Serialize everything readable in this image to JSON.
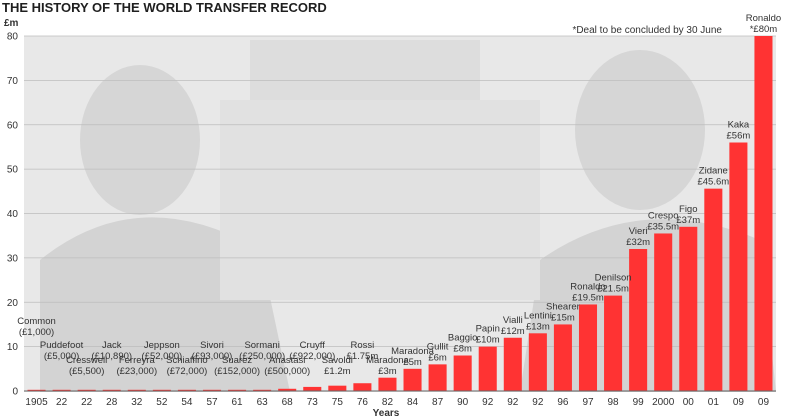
{
  "chart_data": {
    "type": "bar",
    "title": "THE HISTORY OF THE WORLD TRANSFER RECORD",
    "ylabel": "£m",
    "xlabel": "Years",
    "note": "*Deal to be concluded by 30 June",
    "ylim": [
      0,
      80
    ],
    "yticks": [
      0,
      10,
      20,
      30,
      40,
      50,
      60,
      70,
      80
    ],
    "grid": true,
    "bar_color": "#ff3333",
    "categories": [
      "1905",
      "22",
      "22",
      "28",
      "32",
      "52",
      "54",
      "57",
      "61",
      "63",
      "68",
      "73",
      "75",
      "76",
      "82",
      "84",
      "87",
      "90",
      "92",
      "92",
      "92",
      "96",
      "97",
      "98",
      "99",
      "2000",
      "00",
      "01",
      "09",
      "09"
    ],
    "values": [
      0.001,
      0.005,
      0.0055,
      0.01089,
      0.023,
      0.052,
      0.072,
      0.093,
      0.152,
      0.25,
      0.5,
      0.922,
      1.2,
      1.75,
      3,
      5,
      6,
      8,
      10,
      12,
      13,
      15,
      19.5,
      21.5,
      32,
      35.5,
      37,
      45.6,
      56,
      80
    ],
    "players": [
      "Common",
      "Puddefoot",
      "Cresswell",
      "Jack",
      "Ferreyra",
      "Jeppson",
      "Schiaffino",
      "Sivori",
      "Suarez",
      "Sormani",
      "Anastasi",
      "Cruyff",
      "Savoldi",
      "Rossi",
      "Maradona",
      "Maradona",
      "Gullit",
      "Baggio",
      "Papin",
      "Vialli",
      "Lentini",
      "Shearer",
      "Ronaldo",
      "Denilson",
      "Vieri",
      "Crespo",
      "Figo",
      "Zidane",
      "Kaka",
      "Ronaldo"
    ],
    "fees": [
      "(£1,000)",
      "(£5,000)",
      "(£5,500)",
      "(£10,890)",
      "(£23,000)",
      "(£52,000)",
      "(£72,000)",
      "(£93,000)",
      "(£152,000)",
      "(£250,000)",
      "(£500,000)",
      "(£922,000)",
      "£1.2m",
      "£1.75m",
      "£3m",
      "£5m",
      "£6m",
      "£8m",
      "£10m",
      "£12m",
      "£13m",
      "£15m",
      "£19.5m",
      "£21.5m",
      "£32m",
      "£35.5m",
      "£37m",
      "£45.6m",
      "£56m",
      "*£80m"
    ]
  }
}
